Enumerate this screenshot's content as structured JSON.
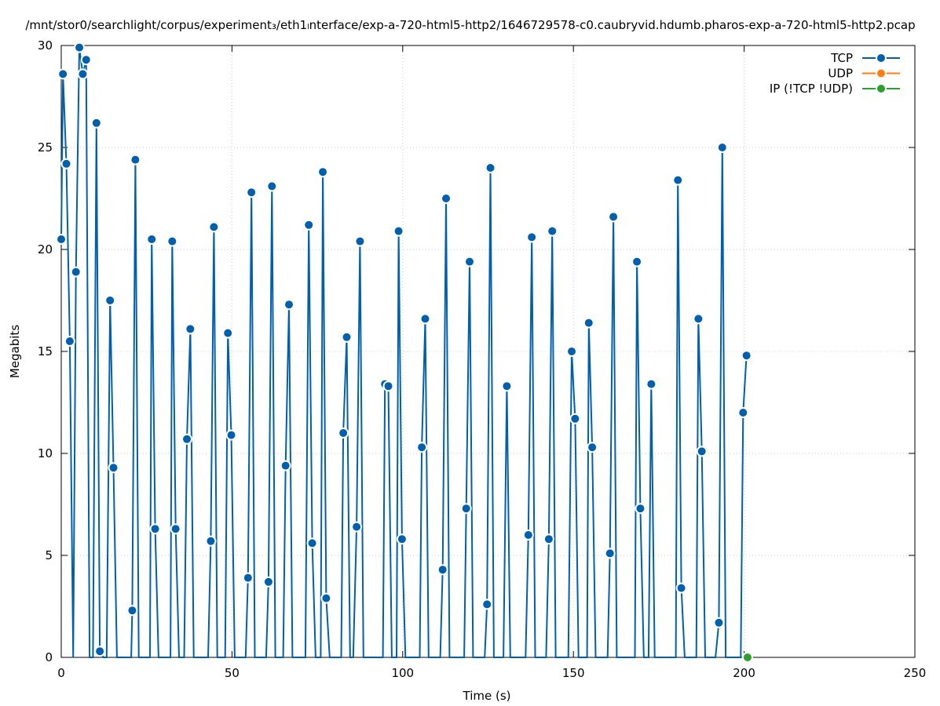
{
  "chart_data": {
    "type": "line",
    "title": "/mnt/stor0/searchlight/corpus/experiment₃/eth1ₗnterface/exp-a-720-html5-http2/1646729578-c0.caubryvid.hdumb.pharos-exp-a-720-html5-http2.pcap",
    "xlabel": "Time (s)",
    "ylabel": "Megabits",
    "xlim": [
      0,
      250
    ],
    "ylim": [
      0,
      30
    ],
    "x_ticks": [
      0,
      50,
      100,
      150,
      200,
      250
    ],
    "y_ticks": [
      0,
      5,
      10,
      15,
      20,
      25,
      30
    ],
    "grid": true,
    "legend_position": "top-right",
    "series": [
      {
        "name": "TCP",
        "color": "#0060ad",
        "points": [
          [
            0,
            20.5
          ],
          [
            0.5,
            28.6
          ],
          [
            1.5,
            24.2
          ],
          [
            2.5,
            15.5
          ],
          [
            3.5,
            0
          ],
          [
            4.3,
            18.9
          ],
          [
            5.3,
            29.9
          ],
          [
            6.3,
            28.6
          ],
          [
            7.3,
            29.3
          ],
          [
            8.3,
            0
          ],
          [
            9.3,
            0
          ],
          [
            10.3,
            26.2
          ],
          [
            11.3,
            0.3
          ],
          [
            12.3,
            0
          ],
          [
            13.3,
            0
          ],
          [
            14.3,
            17.5
          ],
          [
            15.3,
            9.3
          ],
          [
            16.3,
            0
          ],
          [
            20.5,
            0
          ],
          [
            20.8,
            2.3
          ],
          [
            21.7,
            24.4
          ],
          [
            22.7,
            0
          ],
          [
            26,
            0
          ],
          [
            26.5,
            20.5
          ],
          [
            27.5,
            6.3
          ],
          [
            28.5,
            0
          ],
          [
            32,
            0
          ],
          [
            32.5,
            20.4
          ],
          [
            33.5,
            6.3
          ],
          [
            34.5,
            0
          ],
          [
            36,
            0
          ],
          [
            36.8,
            10.7
          ],
          [
            37.8,
            16.1
          ],
          [
            38.8,
            0
          ],
          [
            43,
            0
          ],
          [
            43.8,
            5.7
          ],
          [
            44.7,
            21.1
          ],
          [
            45.7,
            0
          ],
          [
            48,
            0
          ],
          [
            48.8,
            15.9
          ],
          [
            49.8,
            10.9
          ],
          [
            50.8,
            0
          ],
          [
            54,
            0
          ],
          [
            54.7,
            3.9
          ],
          [
            55.7,
            22.8
          ],
          [
            56.7,
            0
          ],
          [
            60,
            0
          ],
          [
            60.7,
            3.7
          ],
          [
            61.7,
            23.1
          ],
          [
            62.7,
            0
          ],
          [
            65,
            0
          ],
          [
            65.7,
            9.4
          ],
          [
            66.7,
            17.3
          ],
          [
            67.7,
            0
          ],
          [
            71.5,
            0
          ],
          [
            72.5,
            21.2
          ],
          [
            73.5,
            5.6
          ],
          [
            74.5,
            0
          ],
          [
            76,
            0
          ],
          [
            76.6,
            23.8
          ],
          [
            77.6,
            2.9
          ],
          [
            78.6,
            0
          ],
          [
            82,
            0
          ],
          [
            82.6,
            11.0
          ],
          [
            83.6,
            15.7
          ],
          [
            84.6,
            0
          ],
          [
            85.5,
            0
          ],
          [
            86.5,
            6.4
          ],
          [
            87.5,
            20.4
          ],
          [
            88.5,
            0
          ],
          [
            94.2,
            0
          ],
          [
            94.8,
            13.4
          ],
          [
            95.8,
            13.3
          ],
          [
            96.8,
            0
          ],
          [
            98.2,
            0
          ],
          [
            98.8,
            20.9
          ],
          [
            99.8,
            5.8
          ],
          [
            100.8,
            0
          ],
          [
            105,
            0
          ],
          [
            105.6,
            10.3
          ],
          [
            106.6,
            16.6
          ],
          [
            107.6,
            0
          ],
          [
            111,
            0
          ],
          [
            111.7,
            4.3
          ],
          [
            112.7,
            22.5
          ],
          [
            113.7,
            0
          ],
          [
            118,
            0
          ],
          [
            118.6,
            7.3
          ],
          [
            119.6,
            19.4
          ],
          [
            120.6,
            0
          ],
          [
            124,
            0
          ],
          [
            124.7,
            2.6
          ],
          [
            125.7,
            24.0
          ],
          [
            126.7,
            0
          ],
          [
            129.5,
            0
          ],
          [
            130.5,
            13.3
          ],
          [
            131.5,
            0
          ],
          [
            136,
            0
          ],
          [
            136.8,
            6.0
          ],
          [
            137.8,
            20.6
          ],
          [
            138.8,
            0
          ],
          [
            142,
            0
          ],
          [
            142.8,
            5.8
          ],
          [
            143.8,
            20.9
          ],
          [
            144.8,
            0
          ],
          [
            148.5,
            0
          ],
          [
            149.5,
            15.0
          ],
          [
            150.5,
            11.7
          ],
          [
            151.5,
            0
          ],
          [
            154,
            0
          ],
          [
            154.5,
            16.4
          ],
          [
            155.5,
            10.3
          ],
          [
            156.5,
            0
          ],
          [
            160,
            0
          ],
          [
            160.7,
            5.1
          ],
          [
            161.7,
            21.6
          ],
          [
            162.7,
            0
          ],
          [
            168,
            0
          ],
          [
            168.6,
            19.4
          ],
          [
            169.6,
            7.3
          ],
          [
            170.6,
            0
          ],
          [
            172,
            0
          ],
          [
            172.8,
            13.4
          ],
          [
            173.8,
            0
          ],
          [
            180,
            0
          ],
          [
            180.6,
            23.4
          ],
          [
            181.6,
            3.4
          ],
          [
            182.6,
            0
          ],
          [
            186,
            0
          ],
          [
            186.6,
            16.6
          ],
          [
            187.6,
            10.1
          ],
          [
            188.6,
            0
          ],
          [
            191.6,
            0
          ],
          [
            192.6,
            1.7
          ],
          [
            193.6,
            25.0
          ],
          [
            194.6,
            0
          ],
          [
            199,
            0
          ],
          [
            199.7,
            12.0
          ],
          [
            200.7,
            14.8
          ]
        ]
      },
      {
        "name": "UDP",
        "color": "#ff7f0e",
        "points": []
      },
      {
        "name": "IP (!TCP  !UDP)",
        "color": "#2ca02c",
        "points": [
          [
            201,
            0
          ]
        ]
      }
    ]
  }
}
